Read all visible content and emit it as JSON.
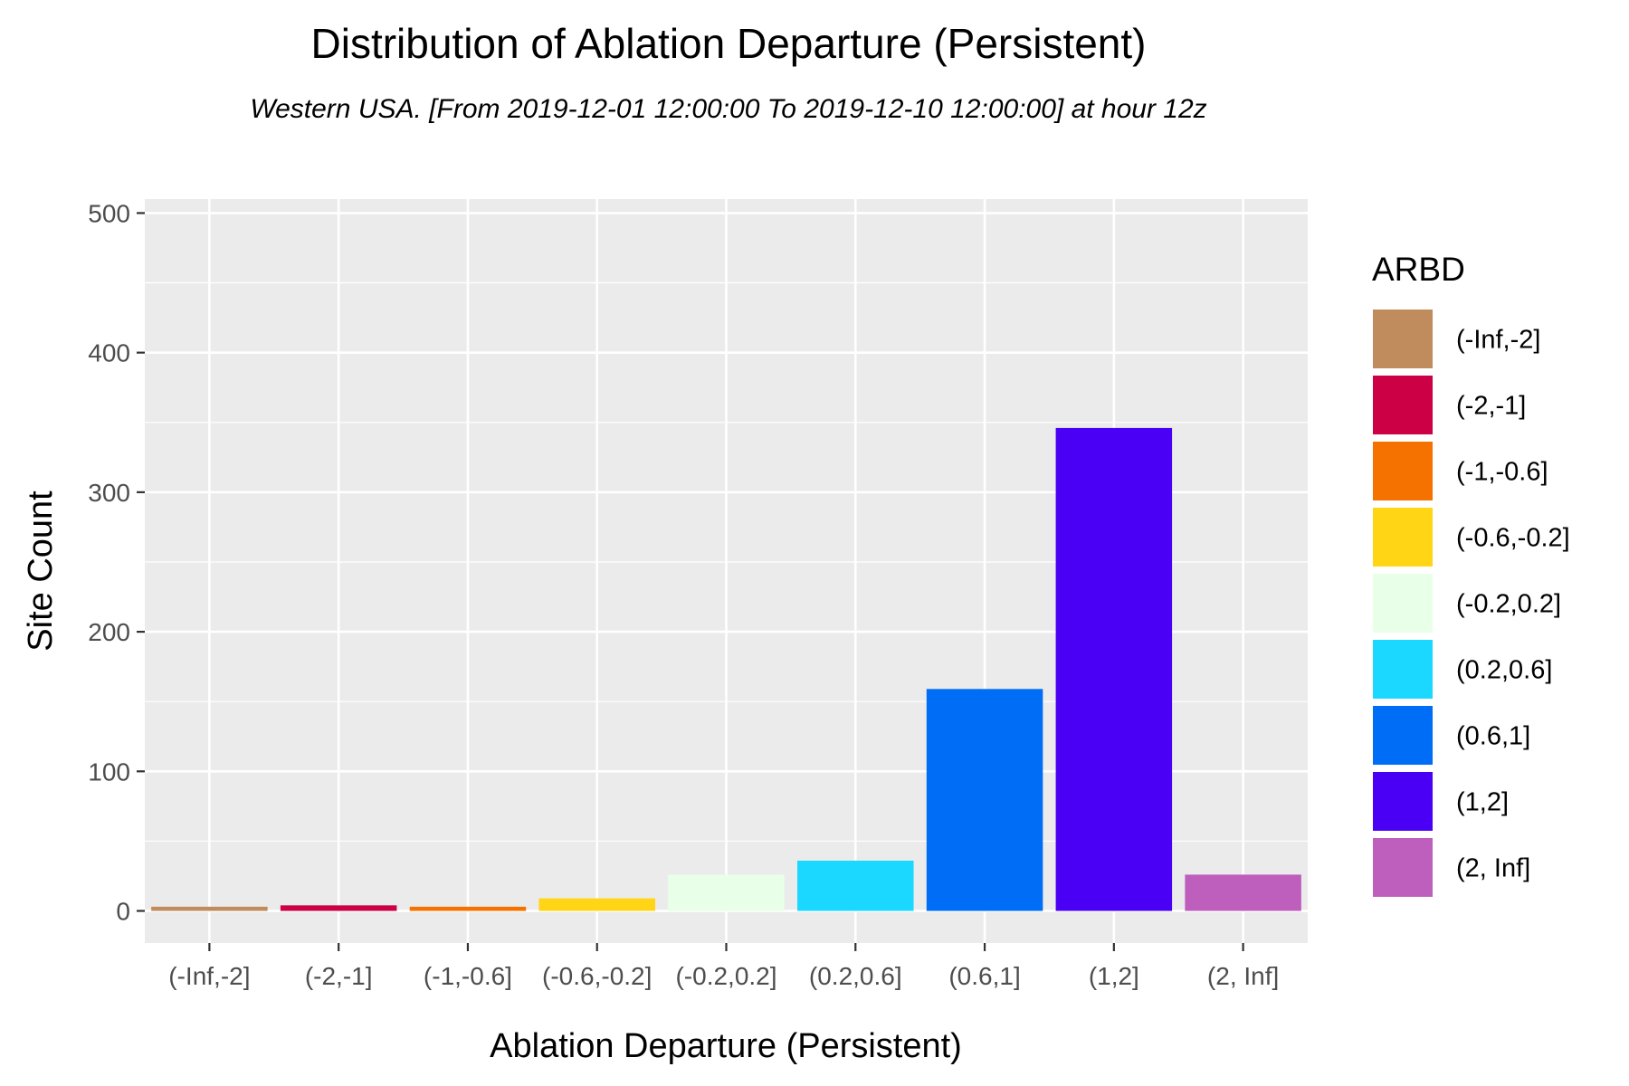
{
  "chart_data": {
    "type": "bar",
    "title": "Distribution of Ablation Departure (Persistent)",
    "subtitle": "Western USA.  [From 2019-12-01 12:00:00 To 2019-12-10 12:00:00] at hour 12z",
    "xlabel": "Ablation Departure (Persistent)",
    "ylabel": "Site Count",
    "categories": [
      "(-Inf,-2]",
      "(-2,-1]",
      "(-1,-0.6]",
      "(-0.6,-0.2]",
      "(-0.2,0.2]",
      "(0.2,0.6]",
      "(0.6,1]",
      "(1,2]",
      "(2, Inf]"
    ],
    "values": [
      3,
      4,
      3,
      9,
      26,
      36,
      159,
      346,
      26
    ],
    "colors": [
      "#C08C5E",
      "#CC0044",
      "#F57200",
      "#FFD515",
      "#E8FFE8",
      "#1AD8FF",
      "#006DF6",
      "#4A00F5",
      "#BE5FBE"
    ],
    "ylim": [
      -23,
      510
    ],
    "yticks": [
      0,
      100,
      200,
      300,
      400,
      500
    ],
    "grid": true,
    "panel_background": "#EBEBEB",
    "legend": {
      "title": "ARBD",
      "placement": "right",
      "entries": [
        "(-Inf,-2]",
        "(-2,-1]",
        "(-1,-0.6]",
        "(-0.6,-0.2]",
        "(-0.2,0.2]",
        "(0.2,0.6]",
        "(0.6,1]",
        "(1,2]",
        "(2, Inf]"
      ]
    }
  }
}
